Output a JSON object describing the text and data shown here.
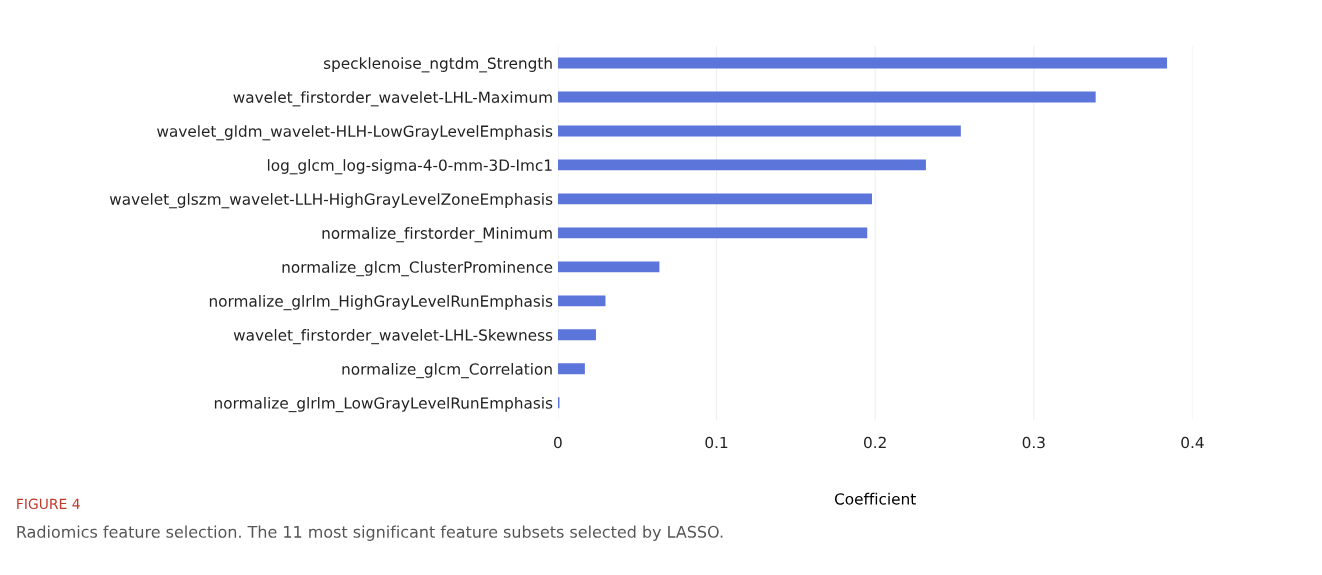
{
  "chart_data": {
    "type": "bar",
    "orientation": "horizontal",
    "xlabel": "Coefficient",
    "categories": [
      "specklenoise_ngtdm_Strength",
      "wavelet_firstorder_wavelet-LHL-Maximum",
      "wavelet_gldm_wavelet-HLH-LowGrayLevelEmphasis",
      "log_glcm_log-sigma-4-0-mm-3D-Imc1",
      "wavelet_glszm_wavelet-LLH-HighGrayLevelZoneEmphasis",
      "normalize_firstorder_Minimum",
      "normalize_glcm_ClusterProminence",
      "normalize_glrlm_HighGrayLevelRunEmphasis",
      "wavelet_firstorder_wavelet-LHL-Skewness",
      "normalize_glcm_Correlation",
      "normalize_glrlm_LowGrayLevelRunEmphasis"
    ],
    "values": [
      0.384,
      0.339,
      0.254,
      0.232,
      0.198,
      0.195,
      0.064,
      0.03,
      0.024,
      0.017,
      0.001
    ],
    "color": "#5b75db",
    "xlim": [
      0,
      0.4
    ],
    "xticks": [
      0,
      0.1,
      0.2,
      0.3,
      0.4
    ],
    "grid": "x",
    "annotations": [
      "FIGURE 4",
      "Radiomics feature selection. The 11 most significant feature subsets selected by LASSO."
    ]
  }
}
